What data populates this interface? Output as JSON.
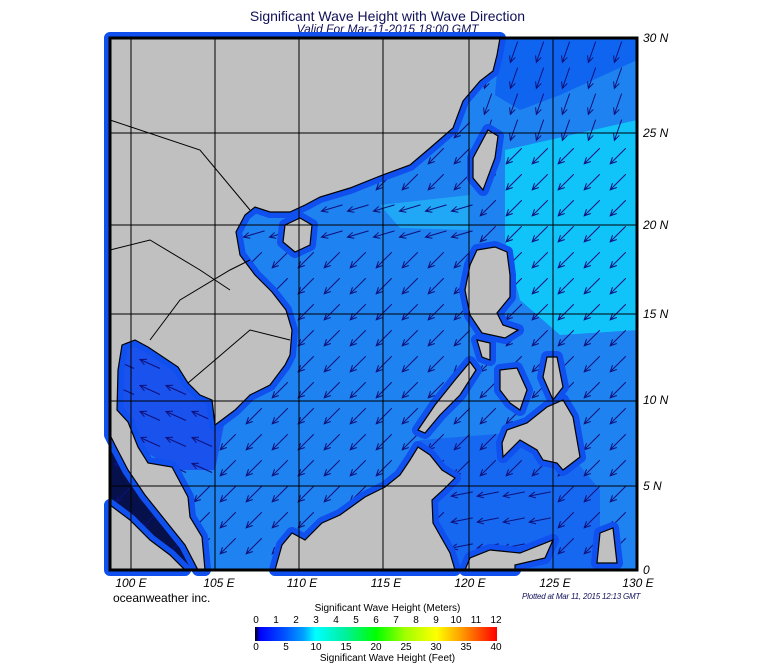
{
  "header": {
    "title": "Significant Wave Height with Wave Direction",
    "subtitle": "Valid For Mar-11-2015 18:00 GMT"
  },
  "map": {
    "longitude_labels": [
      "100 E",
      "105 E",
      "110 E",
      "115 E",
      "120 E",
      "125 E",
      "130 E"
    ],
    "latitude_labels": [
      "30 N",
      "25 N",
      "20 N",
      "15 N",
      "10 N",
      "5 N",
      "0"
    ],
    "colors": {
      "land": "#c0c0c0",
      "sea": "#1e82f0",
      "sea_low": "#0f50ee",
      "sea_high": "#10c4fa",
      "arrow": "#10107a",
      "grid": "#000000"
    },
    "predominant_wave_direction": "from northeast"
  },
  "footer": {
    "credit": "oceanweather inc.",
    "plotted": "Plotted at Mar 11, 2015 12:13 GMT"
  },
  "colorbar": {
    "title_meters": "Significant Wave Height (Meters)",
    "title_feet": "Significant Wave Height (Feet)",
    "meters_ticks": [
      "0",
      "1",
      "2",
      "3",
      "4",
      "5",
      "6",
      "7",
      "8",
      "9",
      "10",
      "11",
      "12"
    ],
    "feet_ticks": [
      "0",
      "5",
      "10",
      "15",
      "20",
      "25",
      "30",
      "35",
      "40"
    ]
  }
}
